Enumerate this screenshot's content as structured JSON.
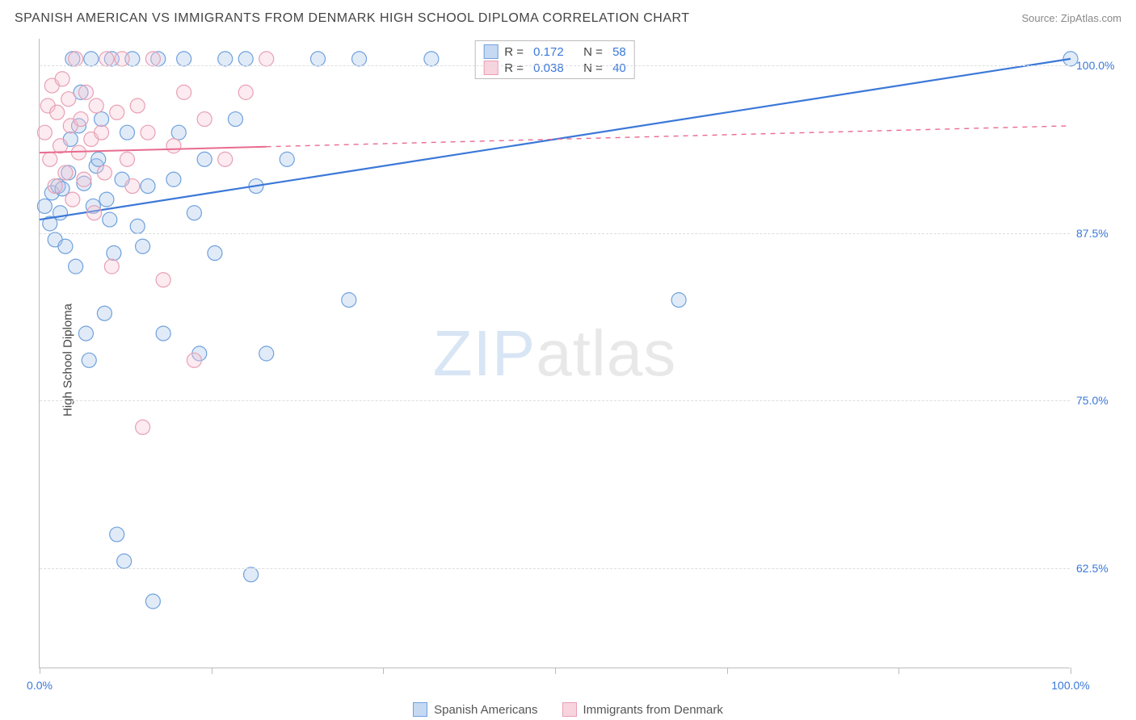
{
  "header": {
    "title": "SPANISH AMERICAN VS IMMIGRANTS FROM DENMARK HIGH SCHOOL DIPLOMA CORRELATION CHART",
    "source": "Source: ZipAtlas.com"
  },
  "chart": {
    "type": "scatter",
    "ylabel": "High School Diploma",
    "xlim": [
      0,
      100
    ],
    "ylim": [
      55,
      102
    ],
    "background_color": "#ffffff",
    "grid_color": "#dddddd",
    "axis_color": "#bbbbbb",
    "title_fontsize": 16,
    "label_fontsize": 15,
    "tick_fontsize": 14,
    "marker_radius": 9,
    "marker_fill_opacity": 0.35,
    "marker_stroke_width": 1.2,
    "yticks": [
      {
        "value": 62.5,
        "label": "62.5%"
      },
      {
        "value": 75.0,
        "label": "75.0%"
      },
      {
        "value": 87.5,
        "label": "87.5%"
      },
      {
        "value": 100.0,
        "label": "100.0%"
      }
    ],
    "xticks_major": [
      0,
      50,
      100
    ],
    "xtick_labels": [
      {
        "value": 0,
        "label": "0.0%",
        "color": "#3b78d8"
      },
      {
        "value": 100,
        "label": "100.0%",
        "color": "#3b78d8"
      }
    ],
    "xtick_minor": [
      16.67,
      33.33,
      66.67,
      83.33
    ],
    "watermark": {
      "text_a": "ZIP",
      "text_b": "atlas"
    },
    "series": [
      {
        "name": "Spanish Americans",
        "color_stroke": "#6fa1dd",
        "color_fill": "#a8c6ec",
        "legend_swatch_fill": "#c6d9f2",
        "legend_swatch_stroke": "#6fa1dd",
        "R": "0.172",
        "N": "58",
        "trend": {
          "x1": 0,
          "y1": 88.5,
          "x2": 100,
          "y2": 100.5,
          "solid_until_x": 100,
          "line_color": "#3b78d8",
          "line_width": 2.2
        },
        "points": [
          [
            0.5,
            89.5
          ],
          [
            1.0,
            88.2
          ],
          [
            1.2,
            90.5
          ],
          [
            1.5,
            87.0
          ],
          [
            1.8,
            91.0
          ],
          [
            2.0,
            89.0
          ],
          [
            2.2,
            90.8
          ],
          [
            2.5,
            86.5
          ],
          [
            2.8,
            92.0
          ],
          [
            3.0,
            94.5
          ],
          [
            3.2,
            100.5
          ],
          [
            3.5,
            85.0
          ],
          [
            3.8,
            95.5
          ],
          [
            4.0,
            98.0
          ],
          [
            4.3,
            91.2
          ],
          [
            4.5,
            80.0
          ],
          [
            4.8,
            78.0
          ],
          [
            5.0,
            100.5
          ],
          [
            5.2,
            89.5
          ],
          [
            5.5,
            92.5
          ],
          [
            6.0,
            96.0
          ],
          [
            6.3,
            81.5
          ],
          [
            6.5,
            90.0
          ],
          [
            7.0,
            100.5
          ],
          [
            7.2,
            86.0
          ],
          [
            7.5,
            65.0
          ],
          [
            8.0,
            91.5
          ],
          [
            8.2,
            63.0
          ],
          [
            8.5,
            95.0
          ],
          [
            9.0,
            100.5
          ],
          [
            9.5,
            88.0
          ],
          [
            10.0,
            86.5
          ],
          [
            10.5,
            91.0
          ],
          [
            11.0,
            60.0
          ],
          [
            11.5,
            100.5
          ],
          [
            12.0,
            80.0
          ],
          [
            13.0,
            91.5
          ],
          [
            13.5,
            95.0
          ],
          [
            14.0,
            100.5
          ],
          [
            15.0,
            89.0
          ],
          [
            15.5,
            78.5
          ],
          [
            16.0,
            93.0
          ],
          [
            17.0,
            86.0
          ],
          [
            18.0,
            100.5
          ],
          [
            19.0,
            96.0
          ],
          [
            20.0,
            100.5
          ],
          [
            20.5,
            62.0
          ],
          [
            21.0,
            91.0
          ],
          [
            22.0,
            78.5
          ],
          [
            24.0,
            93.0
          ],
          [
            27.0,
            100.5
          ],
          [
            30.0,
            82.5
          ],
          [
            31.0,
            100.5
          ],
          [
            38.0,
            100.5
          ],
          [
            62.0,
            82.5
          ],
          [
            5.7,
            93.0
          ],
          [
            6.8,
            88.5
          ],
          [
            100.0,
            100.5
          ]
        ]
      },
      {
        "name": "Immigrants from Denmark",
        "color_stroke": "#e8a0b4",
        "color_fill": "#f5c6d3",
        "legend_swatch_fill": "#f7d4de",
        "legend_swatch_stroke": "#e8a0b4",
        "R": "0.038",
        "N": "40",
        "trend": {
          "x1": 0,
          "y1": 93.5,
          "x2": 100,
          "y2": 95.5,
          "solid_until_x": 22,
          "line_color": "#e86b8f",
          "line_width": 2.0
        },
        "points": [
          [
            0.5,
            95.0
          ],
          [
            0.8,
            97.0
          ],
          [
            1.0,
            93.0
          ],
          [
            1.2,
            98.5
          ],
          [
            1.5,
            91.0
          ],
          [
            1.7,
            96.5
          ],
          [
            2.0,
            94.0
          ],
          [
            2.2,
            99.0
          ],
          [
            2.5,
            92.0
          ],
          [
            2.8,
            97.5
          ],
          [
            3.0,
            95.5
          ],
          [
            3.2,
            90.0
          ],
          [
            3.5,
            100.5
          ],
          [
            3.8,
            93.5
          ],
          [
            4.0,
            96.0
          ],
          [
            4.3,
            91.5
          ],
          [
            4.5,
            98.0
          ],
          [
            5.0,
            94.5
          ],
          [
            5.3,
            89.0
          ],
          [
            5.5,
            97.0
          ],
          [
            6.0,
            95.0
          ],
          [
            6.3,
            92.0
          ],
          [
            6.5,
            100.5
          ],
          [
            7.0,
            85.0
          ],
          [
            7.5,
            96.5
          ],
          [
            8.0,
            100.5
          ],
          [
            8.5,
            93.0
          ],
          [
            9.0,
            91.0
          ],
          [
            9.5,
            97.0
          ],
          [
            10.0,
            73.0
          ],
          [
            10.5,
            95.0
          ],
          [
            11.0,
            100.5
          ],
          [
            12.0,
            84.0
          ],
          [
            13.0,
            94.0
          ],
          [
            14.0,
            98.0
          ],
          [
            15.0,
            78.0
          ],
          [
            16.0,
            96.0
          ],
          [
            18.0,
            93.0
          ],
          [
            20.0,
            98.0
          ],
          [
            22.0,
            100.5
          ]
        ]
      }
    ],
    "legend_corr": {
      "value_color": "#3b78d8",
      "label_color": "#444444"
    },
    "bottom_legend_color": "#555555"
  }
}
